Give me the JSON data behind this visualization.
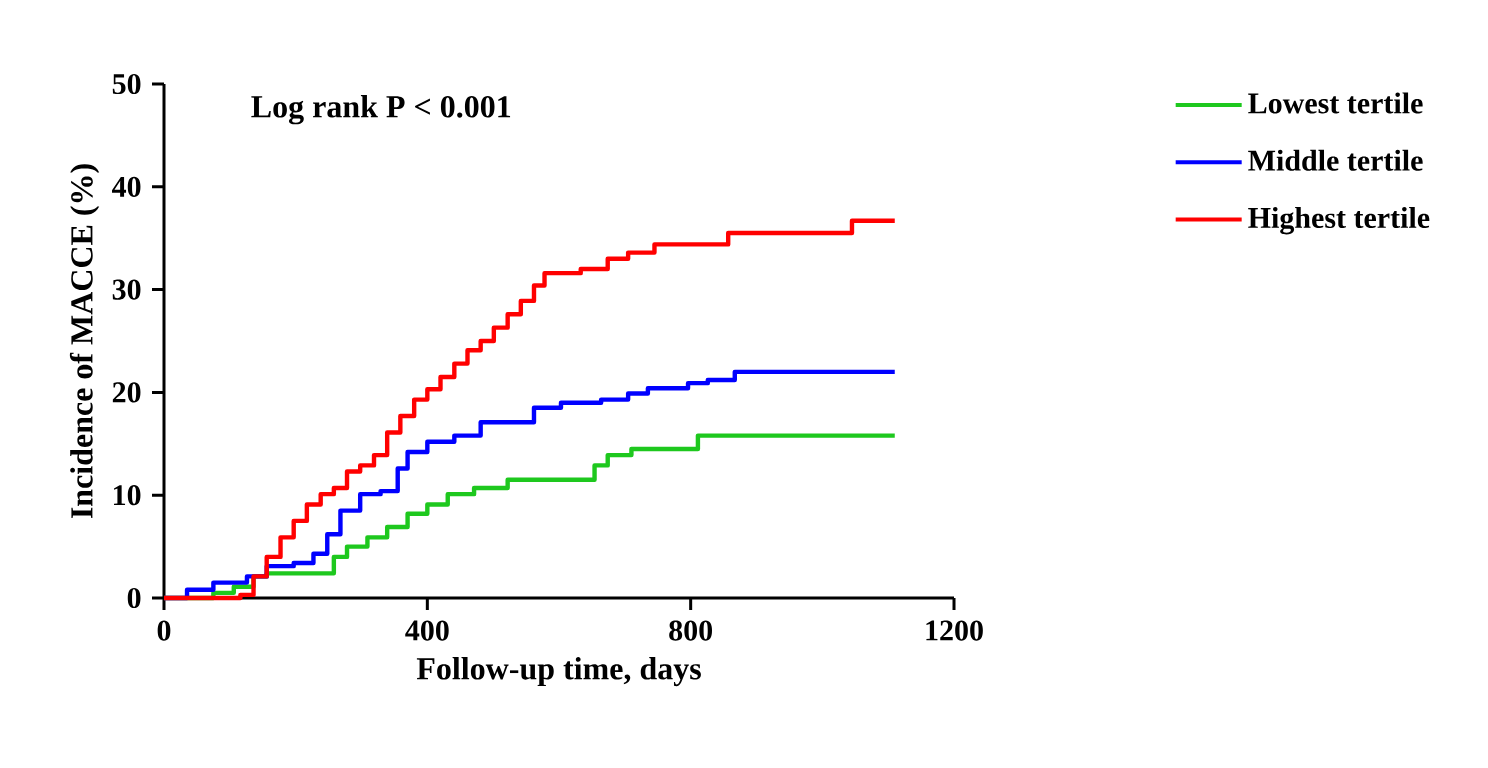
{
  "chart_data": {
    "type": "step",
    "xlabel": "Follow-up time, days",
    "ylabel": "Incidence of MACCE (%)",
    "annotations": [
      "Log rank P < 0.001"
    ],
    "xlim": [
      0,
      1200
    ],
    "xticks": [
      0,
      400,
      800,
      1200
    ],
    "ylim": [
      0,
      50
    ],
    "yticks": [
      0,
      10,
      20,
      30,
      40,
      50
    ],
    "grid": false,
    "legend": "right",
    "marker": "none",
    "line_style": "solid",
    "series": [
      {
        "name": "Lowest tertile",
        "color": "#1ec81e",
        "x": [
          0,
          75,
          106,
          136,
          156,
          258,
          278,
          309,
          339,
          370,
          400,
          431,
          471,
          522,
          654,
          674,
          710,
          811,
          1110
        ],
        "values": [
          0,
          0.5,
          1.1,
          2.1,
          2.4,
          4,
          5,
          5.9,
          6.9,
          8.2,
          9.1,
          10.1,
          10.7,
          11.5,
          12.9,
          13.9,
          14.5,
          15.8,
          15.8
        ]
      },
      {
        "name": "Middle tertile",
        "color": "#0000ff",
        "x": [
          0,
          35,
          75,
          126,
          156,
          197,
          227,
          248,
          268,
          298,
          329,
          355,
          370,
          400,
          441,
          481,
          562,
          603,
          664,
          705,
          735,
          796,
          826,
          867,
          1110
        ],
        "values": [
          0,
          0.8,
          1.5,
          2.1,
          3.1,
          3.4,
          4.3,
          6.2,
          8.5,
          10.1,
          10.4,
          12.6,
          14.2,
          15.2,
          15.8,
          17.1,
          18.5,
          19,
          19.3,
          19.9,
          20.4,
          20.9,
          21.2,
          22,
          22
        ]
      },
      {
        "name": "Highest tertile",
        "color": "#ff0000",
        "x": [
          0,
          116,
          136,
          156,
          177,
          197,
          217,
          238,
          258,
          278,
          298,
          319,
          339,
          359,
          380,
          400,
          420,
          441,
          461,
          481,
          501,
          522,
          542,
          562,
          578,
          633,
          674,
          705,
          745,
          857,
          1045,
          1110
        ],
        "values": [
          0,
          0.3,
          2.1,
          4,
          5.9,
          7.5,
          9.1,
          10.1,
          10.7,
          12.3,
          12.9,
          13.9,
          16.1,
          17.7,
          19.3,
          20.3,
          21.5,
          22.8,
          24.1,
          25,
          26.3,
          27.6,
          28.9,
          30.4,
          31.6,
          32,
          33,
          33.6,
          34.4,
          35.5,
          36.7,
          36.7
        ]
      }
    ]
  }
}
